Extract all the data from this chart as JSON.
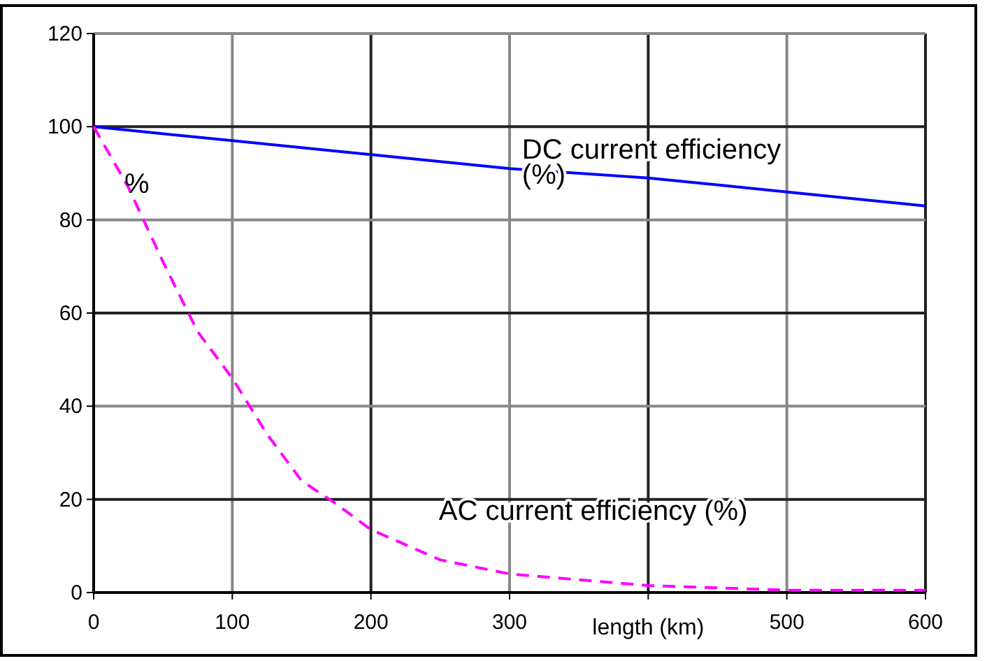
{
  "chart_data": {
    "type": "line",
    "xlabel": "length (km)",
    "x": [
      0,
      25,
      50,
      75,
      100,
      125,
      150,
      175,
      200,
      250,
      300,
      400,
      500,
      600
    ],
    "series": [
      {
        "name": "DC current efficiency (%)",
        "color": "#0000ff",
        "line_style": "solid",
        "x": [
          0,
          100,
          200,
          300,
          400,
          500,
          600
        ],
        "values": [
          100,
          97,
          94,
          91,
          89,
          86,
          83
        ]
      },
      {
        "name": "AC current efficiency (%)",
        "color": "#ff00ff",
        "line_style": "dashed",
        "values": [
          100,
          87,
          71,
          56,
          46,
          34,
          24,
          19,
          13.5,
          7,
          4,
          1.5,
          0.5,
          0.5
        ]
      }
    ],
    "xlim": [
      0,
      600
    ],
    "xticks": [
      0,
      100,
      200,
      300,
      {
        "value": 400,
        "label": null
      },
      500,
      600
    ],
    "ylim": [
      0,
      120
    ],
    "yticks": [
      0,
      20,
      40,
      60,
      80,
      100,
      120
    ],
    "grid": true,
    "annotations": [
      "%"
    ]
  }
}
